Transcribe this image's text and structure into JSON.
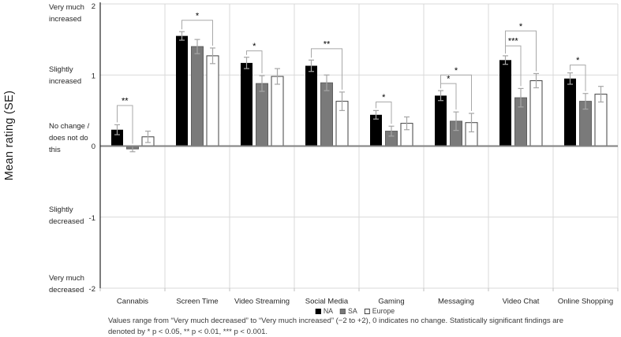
{
  "chart_data": {
    "type": "bar",
    "title": "",
    "xlabel": "",
    "ylabel": "Mean rating  (SE)",
    "ylim": [
      -2,
      2
    ],
    "legend_position": "bottom-center",
    "grid": "light horizontal lines at +2,+1,-1,-2; light vertical separators between category groups",
    "categories": [
      "Cannabis",
      "Screen Time",
      "Video Streaming",
      "Social Media",
      "Gaming",
      "Messaging",
      "Video Chat",
      "Online Shopping"
    ],
    "y_axis": {
      "ticks": [
        "2",
        "1",
        "0",
        "-1",
        "-2"
      ],
      "tick_values": [
        2,
        1,
        0,
        -1,
        -2
      ],
      "descriptors": [
        {
          "value": 2,
          "lines": [
            "Very much",
            "increased"
          ]
        },
        {
          "value": 1,
          "lines": [
            "Slightly",
            "increased"
          ]
        },
        {
          "value": 0,
          "lines": [
            "No change /",
            "does not do",
            "this"
          ]
        },
        {
          "value": -1,
          "lines": [
            "Slightly",
            "decreased"
          ]
        },
        {
          "value": -2,
          "lines": [
            "Very much",
            "decreased"
          ]
        }
      ]
    },
    "series": [
      {
        "name": "NA",
        "color": "#000000",
        "border": "#000000",
        "values": [
          0.23,
          1.55,
          1.17,
          1.13,
          0.44,
          0.71,
          1.21,
          0.95
        ],
        "se": [
          0.07,
          0.06,
          0.08,
          0.08,
          0.06,
          0.07,
          0.06,
          0.08
        ]
      },
      {
        "name": "SA",
        "color": "#7a7a7a",
        "border": "#5f5f5f",
        "values": [
          -0.04,
          1.4,
          0.88,
          0.89,
          0.21,
          0.35,
          0.68,
          0.63
        ],
        "se": [
          0.04,
          0.1,
          0.11,
          0.11,
          0.07,
          0.13,
          0.13,
          0.11
        ]
      },
      {
        "name": "Europe",
        "color": "#ffffff",
        "border": "#404040",
        "values": [
          0.13,
          1.27,
          0.98,
          0.63,
          0.32,
          0.33,
          0.92,
          0.73
        ],
        "se": [
          0.08,
          0.11,
          0.11,
          0.13,
          0.09,
          0.13,
          0.1,
          0.11
        ]
      }
    ],
    "significance": [
      {
        "category": "Cannabis",
        "between": [
          "NA",
          "SA"
        ],
        "label": "**",
        "bar_y": 0.57
      },
      {
        "category": "Screen Time",
        "between": [
          "NA",
          "Europe"
        ],
        "label": "*",
        "bar_y": 1.77
      },
      {
        "category": "Video Streaming",
        "between": [
          "NA",
          "SA"
        ],
        "label": "*",
        "bar_y": 1.34
      },
      {
        "category": "Social Media",
        "between": [
          "NA",
          "Europe"
        ],
        "label": "**",
        "bar_y": 1.37
      },
      {
        "category": "Gaming",
        "between": [
          "NA",
          "SA"
        ],
        "label": "*",
        "bar_y": 0.62
      },
      {
        "category": "Messaging",
        "between": [
          "NA",
          "Europe"
        ],
        "label": "*",
        "bar_y": 1.0
      },
      {
        "category": "Messaging",
        "between": [
          "NA",
          "SA"
        ],
        "label": "*",
        "bar_y": 0.88
      },
      {
        "category": "Video Chat",
        "between": [
          "NA",
          "Europe"
        ],
        "label": "*",
        "bar_y": 1.62
      },
      {
        "category": "Video Chat",
        "between": [
          "NA",
          "SA"
        ],
        "label": "***",
        "bar_y": 1.41
      },
      {
        "category": "Online Shopping",
        "between": [
          "NA",
          "SA"
        ],
        "label": "*",
        "bar_y": 1.14
      }
    ],
    "caption": {
      "line1": "Values range from “Very much decreased” to “Very much increased” (−2 to +2), 0 indicates no change. Statistically significant findings are",
      "line2": "denoted by * p < 0.05, ** p < 0.01, *** p < 0.001."
    },
    "colors": {
      "error_bar": "#a6a6a6",
      "bracket": "#a8a8a8",
      "gridline": "#d9d9d9",
      "zero_line": "#808080",
      "axis_line": "#262626",
      "bottom_line": "#bfbfbf",
      "text": "#262626"
    }
  }
}
